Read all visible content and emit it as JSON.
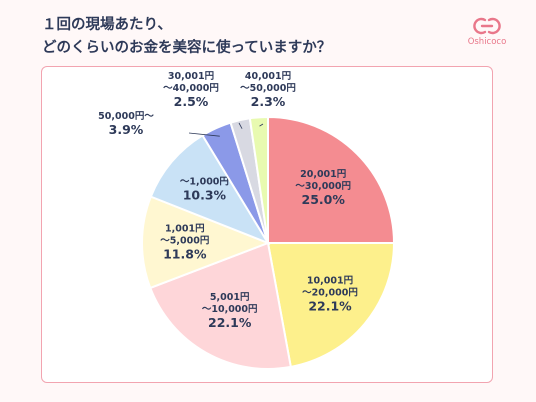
{
  "title_lines": [
    "１回の現場あたり、",
    "どのくらいのお金を美容に使っていますか？"
  ],
  "brand": {
    "name": "Oshicoco",
    "icon": "oshicoco-logo-icon",
    "color": "#e9778a"
  },
  "colors": {
    "background": "#fff8f8",
    "panel_border": "#f2a4b0",
    "text": "#2e3a59"
  },
  "chart_data": {
    "type": "pie",
    "start": "top, clockwise",
    "slices": [
      {
        "label": [
          "20,001円",
          "〜30,000円"
        ],
        "value": 25.0,
        "value_label": "25.0%",
        "color": "#f48c91"
      },
      {
        "label": [
          "10,001円",
          "〜20,000円"
        ],
        "value": 22.1,
        "value_label": "22.1%",
        "color": "#fdf08c"
      },
      {
        "label": [
          "5,001円",
          "〜10,000円"
        ],
        "value": 22.1,
        "value_label": "22.1%",
        "color": "#fed6d9"
      },
      {
        "label": [
          "1,001円",
          "〜5,000円"
        ],
        "value": 11.8,
        "value_label": "11.8%",
        "color": "#fff7d1"
      },
      {
        "label": [
          "〜1,000円"
        ],
        "value": 10.3,
        "value_label": "10.3%",
        "color": "#c9e2f6"
      },
      {
        "label": [
          "50,000円〜"
        ],
        "value": 3.9,
        "value_label": "3.9%",
        "color": "#8b99e8"
      },
      {
        "label": [
          "30,001円",
          "〜40,000円"
        ],
        "value": 2.5,
        "value_label": "2.5%",
        "color": "#d8d9e2"
      },
      {
        "label": [
          "40,001円",
          "〜50,000円"
        ],
        "value": 2.3,
        "value_label": "2.3%",
        "color": "#e8fab0"
      }
    ]
  }
}
